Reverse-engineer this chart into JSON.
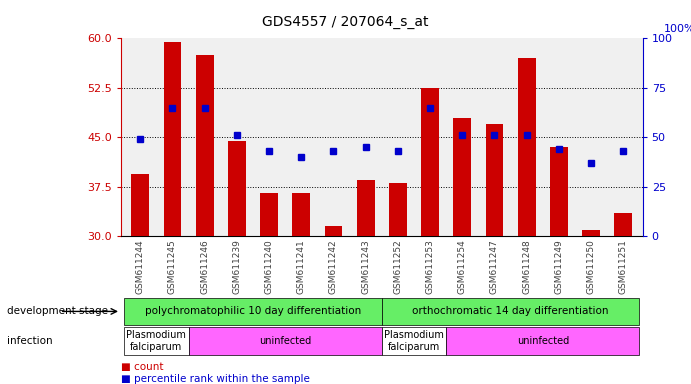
{
  "title": "GDS4557 / 207064_s_at",
  "samples": [
    "GSM611244",
    "GSM611245",
    "GSM611246",
    "GSM611239",
    "GSM611240",
    "GSM611241",
    "GSM611242",
    "GSM611243",
    "GSM611252",
    "GSM611253",
    "GSM611254",
    "GSM611247",
    "GSM611248",
    "GSM611249",
    "GSM611250",
    "GSM611251"
  ],
  "counts": [
    39.5,
    59.5,
    57.5,
    44.5,
    36.5,
    36.5,
    31.5,
    38.5,
    38.0,
    52.5,
    48.0,
    47.0,
    57.0,
    43.5,
    31.0,
    33.5
  ],
  "percentiles": [
    49,
    65,
    65,
    51,
    43,
    40,
    43,
    45,
    43,
    65,
    51,
    51,
    51,
    44,
    37,
    43
  ],
  "ylim_left": [
    30,
    60
  ],
  "ylim_right": [
    0,
    100
  ],
  "yticks_left": [
    30,
    37.5,
    45,
    52.5,
    60
  ],
  "yticks_right": [
    0,
    25,
    50,
    75,
    100
  ],
  "bar_color": "#cc0000",
  "dot_color": "#0000cc",
  "plot_bg": "#f0f0f0",
  "grid_color": "#000000",
  "dev_stage_groups": [
    {
      "label": "polychromatophilic 10 day differentiation",
      "start": 0,
      "end": 7,
      "color": "#66ee66"
    },
    {
      "label": "orthochromatic 14 day differentiation",
      "start": 8,
      "end": 15,
      "color": "#66ee66"
    }
  ],
  "infection_groups": [
    {
      "label": "Plasmodium\nfalciparum",
      "start": 0,
      "end": 1,
      "color": "#ffffff"
    },
    {
      "label": "uninfected",
      "start": 2,
      "end": 7,
      "color": "#ff66ff"
    },
    {
      "label": "Plasmodium\nfalciparum",
      "start": 8,
      "end": 9,
      "color": "#ffffff"
    },
    {
      "label": "uninfected",
      "start": 10,
      "end": 15,
      "color": "#ff66ff"
    }
  ],
  "legend_count_label": "count",
  "legend_pct_label": "percentile rank within the sample",
  "dev_stage_label": "development stage",
  "infection_label": "infection",
  "xticklabel_color": "#404040",
  "tick_color_left": "#cc0000",
  "tick_color_right": "#0000cc"
}
